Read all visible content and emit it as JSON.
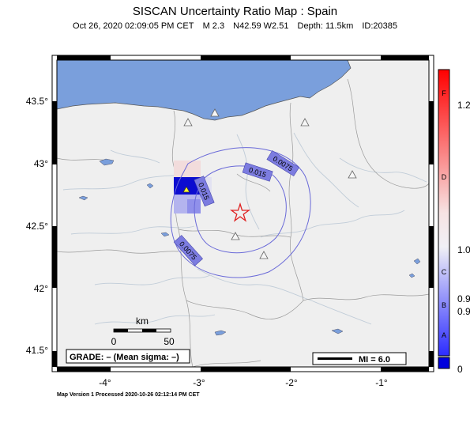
{
  "header": {
    "title": "SISCAN Uncertainty Ratio Map : Spain",
    "datetime": "Oct 26, 2020 02:09:05 PM CET",
    "magnitude": "M 2.3",
    "location": "N42.59 W2.51",
    "depth": "Depth: 11.5km",
    "event_id": "ID:20385"
  },
  "axes": {
    "longitude_ticks": [
      "-4°",
      "-3°",
      "-2°",
      "-1°"
    ],
    "latitude_ticks": [
      "43.5°",
      "43°",
      "42.5°",
      "42°",
      "41.5°"
    ]
  },
  "contours": [
    {
      "label": "0.0075"
    },
    {
      "label": "0.015"
    },
    {
      "label": "0.015"
    },
    {
      "label": "0.0075"
    }
  ],
  "scale_bar": {
    "title": "km",
    "start": "0",
    "end": "50"
  },
  "grade_box": {
    "text": "GRADE: – (Mean sigma: –)"
  },
  "mi_legend": {
    "text": "MI = 6.0"
  },
  "colorbar": {
    "grade_letters": [
      "F",
      "D",
      "C",
      "B",
      "A"
    ],
    "values": [
      "1.2",
      "1.0",
      "0.9",
      "0.9",
      "0"
    ],
    "colors": {
      "high": "#ff0000",
      "mid": "#f4f4f4",
      "low": "#0000dd"
    }
  },
  "footer": {
    "text": "Map Version 1 Processed 2020-10-26 02:12:14 PM CET"
  },
  "colors": {
    "sea": "#7a9fdc",
    "land": "#efefef",
    "contour": "#6a6ad8",
    "epicenter": "#e02020"
  }
}
